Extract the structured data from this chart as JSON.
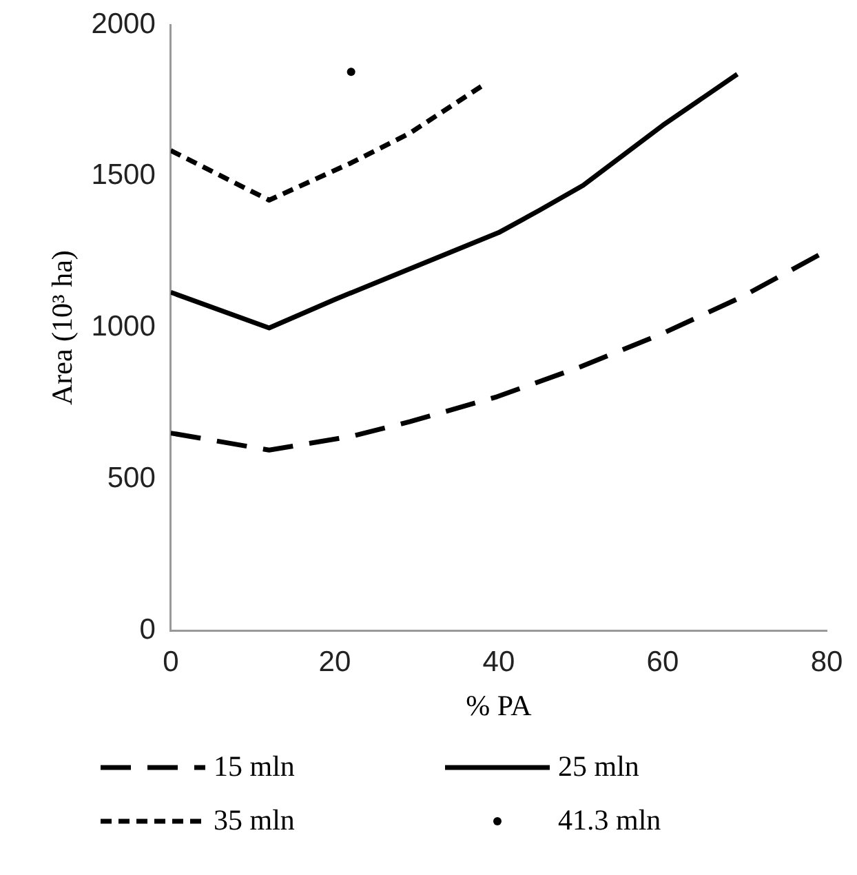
{
  "chart_data": {
    "type": "line",
    "xlabel": "% PA",
    "ylabel": "Area (10³ ha)",
    "xlim": [
      0,
      80
    ],
    "xticks": [
      0,
      20,
      40,
      60,
      80
    ],
    "ylim": [
      0,
      2000
    ],
    "yticks": [
      0,
      500,
      1000,
      1500,
      2000
    ],
    "legend": "bottom",
    "grid": false,
    "series": [
      {
        "name": "15 mln",
        "color": "#000000",
        "line_style": "dashed",
        "marker": "none",
        "x": [
          0,
          12,
          22,
          29.2,
          39.8,
          50,
          60,
          69.6,
          80
        ],
        "values": [
          652,
          596,
          641,
          690,
          772,
          871,
          981,
          1101,
          1254
        ]
      },
      {
        "name": "25 mln",
        "color": "#000000",
        "line_style": "solid",
        "marker": "none",
        "x": [
          0,
          12,
          20,
          27.4,
          40,
          45,
          50.3,
          60,
          69.1
        ],
        "values": [
          1117,
          999,
          1093,
          1175,
          1314,
          1388,
          1470,
          1668,
          1837
        ]
      },
      {
        "name": "35 mln",
        "color": "#000000",
        "line_style": "dotted",
        "marker": "none",
        "x": [
          0,
          12,
          22,
          29.2,
          38
        ],
        "values": [
          1585,
          1421,
          1544,
          1643,
          1799
        ]
      },
      {
        "name": "41.3 mln",
        "type": "scatter",
        "color": "#000000",
        "marker": "circle",
        "x": [
          22
        ],
        "values": [
          1845
        ]
      }
    ]
  }
}
